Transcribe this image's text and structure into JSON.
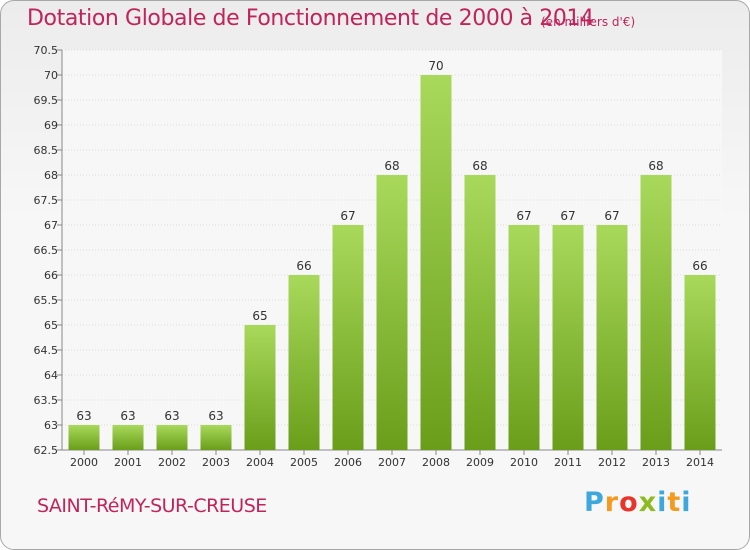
{
  "header": {
    "title": "Dotation Globale de Fonctionnement de 2000 à 2014",
    "subtitle": "(en milliers d'€)"
  },
  "footer": {
    "commune": "SAINT-RéMY-SUR-CREUSE",
    "brand": "Proxiti"
  },
  "colors": {
    "title": "#c0245b",
    "bar_light": "#a9d95b",
    "bar_dark": "#6a9e1a",
    "grid": "#dcdcdc"
  },
  "chart_data": {
    "type": "bar",
    "title": "Dotation Globale de Fonctionnement de 2000 à 2014",
    "subtitle": "(en milliers d'€)",
    "categories": [
      "2000",
      "2001",
      "2002",
      "2003",
      "2004",
      "2005",
      "2006",
      "2007",
      "2008",
      "2009",
      "2010",
      "2011",
      "2012",
      "2013",
      "2014"
    ],
    "values": [
      63,
      63,
      63,
      63,
      65,
      66,
      67,
      68,
      70,
      68,
      67,
      67,
      67,
      68,
      66
    ],
    "ylim": [
      62.5,
      70.5
    ],
    "yticks": [
      "62.5",
      "63",
      "63.5",
      "64",
      "64.5",
      "65",
      "65.5",
      "66",
      "66.5",
      "67",
      "67.5",
      "68",
      "68.5",
      "69",
      "69.5",
      "70",
      "70.5"
    ],
    "grid": true,
    "xlabel": "",
    "ylabel": ""
  }
}
